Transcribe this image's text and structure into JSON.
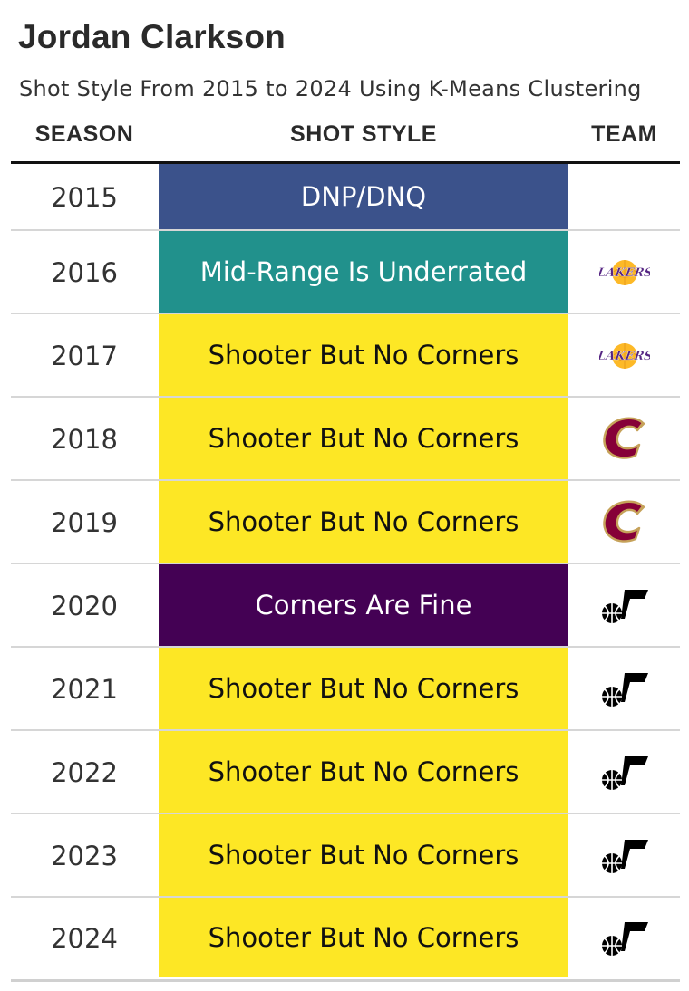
{
  "title": "Jordan Clarkson",
  "subtitle": "Shot Style From 2015 to 2024 Using K-Means Clustering",
  "headers": {
    "season": "SEASON",
    "shot_style": "SHOT STYLE",
    "team": "TEAM"
  },
  "style_colors": {
    "DNP/DNQ": "#3b528b",
    "Mid-Range Is Underrated": "#21918c",
    "Shooter But No Corners": "#fde725",
    "Corners Are Fine": "#440154"
  },
  "rows": [
    {
      "season": "2015",
      "shot_style": "DNP/DNQ",
      "team_logo": ""
    },
    {
      "season": "2016",
      "shot_style": "Mid-Range Is Underrated",
      "team_logo": "lakers-logo"
    },
    {
      "season": "2017",
      "shot_style": "Shooter But No Corners",
      "team_logo": "lakers-logo"
    },
    {
      "season": "2018",
      "shot_style": "Shooter But No Corners",
      "team_logo": "cavaliers-logo"
    },
    {
      "season": "2019",
      "shot_style": "Shooter But No Corners",
      "team_logo": "cavaliers-logo"
    },
    {
      "season": "2020",
      "shot_style": "Corners Are Fine",
      "team_logo": "jazz-logo"
    },
    {
      "season": "2021",
      "shot_style": "Shooter But No Corners",
      "team_logo": "jazz-logo"
    },
    {
      "season": "2022",
      "shot_style": "Shooter But No Corners",
      "team_logo": "jazz-logo"
    },
    {
      "season": "2023",
      "shot_style": "Shooter But No Corners",
      "team_logo": "jazz-logo"
    },
    {
      "season": "2024",
      "shot_style": "Shooter But No Corners",
      "team_logo": "jazz-logo"
    }
  ]
}
